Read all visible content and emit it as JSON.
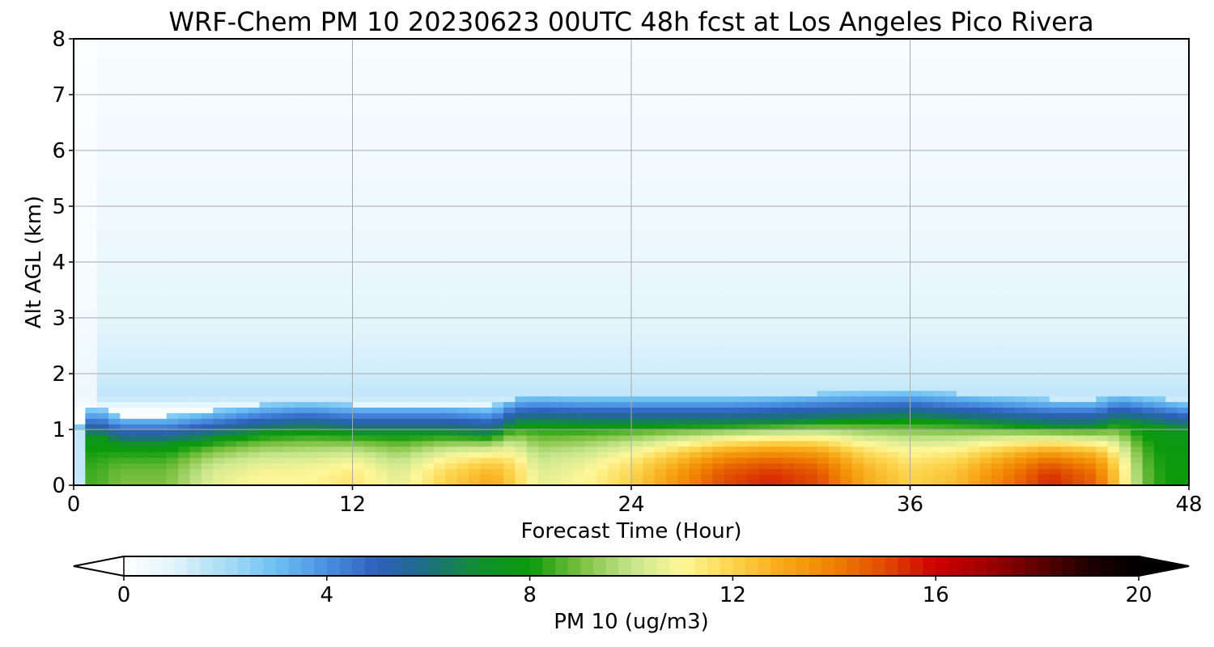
{
  "chart_data": {
    "type": "heatmap",
    "title": "WRF-Chem PM 10  20230623 00UTC 48h fcst at Los Angeles Pico Rivera",
    "xlabel": "Forecast Time (Hour)",
    "ylabel": "Alt AGL (km)",
    "xlim": [
      0,
      48
    ],
    "ylim": [
      0,
      8
    ],
    "x_ticks": [
      0,
      12,
      24,
      36,
      48
    ],
    "y_ticks": [
      0,
      1,
      2,
      3,
      4,
      5,
      6,
      7,
      8
    ],
    "grid": true,
    "colorbar": {
      "label": "PM 10  (ug/m3)",
      "min": 0,
      "max": 20,
      "ticks": [
        0,
        4,
        8,
        12,
        16,
        20
      ],
      "extend": "both",
      "placement": "bottom",
      "colors": [
        "#ffffff",
        "#e0f4fc",
        "#a8dcf6",
        "#6cc0f2",
        "#4a90e2",
        "#2e5fbd",
        "#1d6f80",
        "#119030",
        "#0a9a0a",
        "#7cc040",
        "#c6e58c",
        "#fff799",
        "#fcd34a",
        "#f8a818",
        "#f08000",
        "#e04a00",
        "#cc0000",
        "#a00000",
        "#600000",
        "#200000",
        "#000000"
      ]
    },
    "field": {
      "x_hours": [
        0,
        0.5,
        1,
        2,
        4,
        6,
        8,
        10,
        12,
        14,
        16,
        18,
        19,
        20,
        22,
        24,
        26,
        28,
        30,
        32,
        34,
        36,
        38,
        40,
        42,
        44,
        45,
        46,
        47,
        48
      ],
      "z_km": [
        0,
        0.2,
        0.4,
        0.6,
        0.8,
        0.95,
        1.1,
        1.3,
        1.6,
        2.0,
        2.5,
        3.0,
        3.5,
        4.0,
        4.5,
        5.0,
        5.5,
        6.0,
        6.5,
        7.0,
        7.5,
        8.0
      ],
      "base_profile": [
        [
          0,
          0
        ],
        [
          1,
          0
        ],
        [
          1.3,
          0
        ],
        [
          1.6,
          1.6
        ],
        [
          2.0,
          1.3
        ],
        [
          2.5,
          1.1
        ],
        [
          3.0,
          0.9
        ],
        [
          3.5,
          0.75
        ],
        [
          4.5,
          0.6
        ],
        [
          5.5,
          0.45
        ],
        [
          6.5,
          0.35
        ],
        [
          8,
          0.25
        ]
      ],
      "surface_value": [
        3.0,
        8.5,
        8.5,
        9.0,
        9.0,
        10.5,
        11.0,
        11.0,
        11.5,
        10.5,
        12.0,
        13.0,
        12.0,
        10.5,
        11.0,
        12.0,
        13.5,
        15.0,
        15.5,
        15.0,
        13.0,
        12.0,
        12.5,
        14.0,
        15.5,
        14.5,
        12.0,
        9.0,
        8.0,
        8.0
      ],
      "layer_top_km": [
        0.3,
        0.85,
        0.9,
        0.75,
        0.75,
        0.85,
        0.95,
        1.0,
        0.95,
        0.95,
        0.95,
        0.9,
        1.1,
        1.12,
        1.1,
        1.1,
        1.1,
        1.1,
        1.12,
        1.15,
        1.18,
        1.2,
        1.15,
        1.1,
        1.05,
        1.05,
        1.15,
        1.1,
        1.05,
        1.0
      ]
    }
  }
}
